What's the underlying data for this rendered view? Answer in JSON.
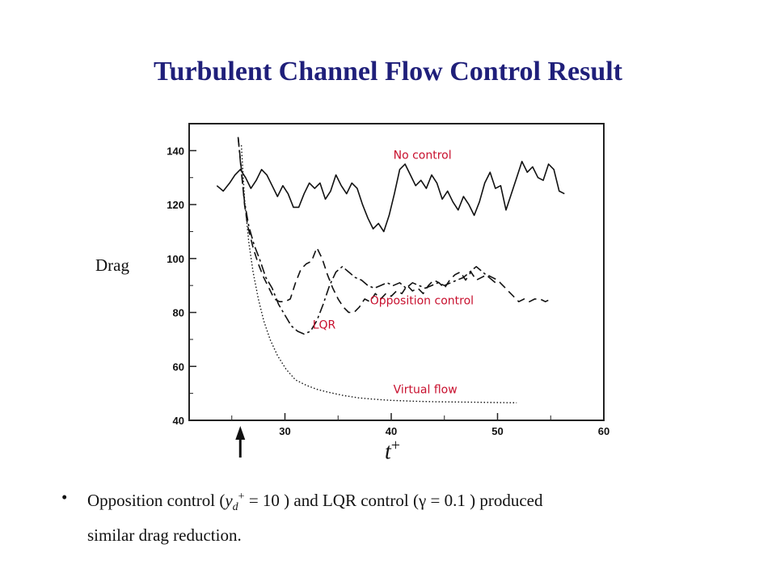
{
  "slide": {
    "title": "Turbulent Channel Flow Control Result",
    "bullet": {
      "symbol": "•",
      "text_before": "Opposition control (",
      "var_y": "y",
      "sub_d": "d",
      "sup_plus": "+",
      "text_mid1": " = 10 ) and LQR control (",
      "gamma": "γ",
      "text_mid2": " = 0.1 ) produced",
      "text_line2": "similar drag reduction."
    }
  },
  "chart_data": {
    "type": "line",
    "ylabel": "Drag",
    "xlabel": "t",
    "xlabel_sup": "+",
    "xlim": [
      20,
      60
    ],
    "ylim": [
      40,
      150
    ],
    "x_ticks": [
      30,
      40,
      50,
      60
    ],
    "y_ticks": [
      40,
      60,
      80,
      100,
      120,
      140
    ],
    "grid": false,
    "control_start_marker_x": 25.8,
    "series": [
      {
        "name": "No control",
        "color": "#c8102e",
        "label_at": [
          40.2,
          137
        ],
        "style": "solid",
        "points": [
          [
            23.6,
            127
          ],
          [
            24.2,
            125
          ],
          [
            24.8,
            128
          ],
          [
            25.3,
            131
          ],
          [
            25.8,
            133
          ],
          [
            26.3,
            130
          ],
          [
            26.8,
            126
          ],
          [
            27.3,
            129
          ],
          [
            27.8,
            133
          ],
          [
            28.3,
            131
          ],
          [
            28.8,
            127
          ],
          [
            29.3,
            123
          ],
          [
            29.8,
            127
          ],
          [
            30.3,
            124
          ],
          [
            30.8,
            119
          ],
          [
            31.3,
            119
          ],
          [
            31.8,
            124
          ],
          [
            32.3,
            128
          ],
          [
            32.8,
            126
          ],
          [
            33.3,
            128
          ],
          [
            33.8,
            122
          ],
          [
            34.3,
            125
          ],
          [
            34.8,
            131
          ],
          [
            35.3,
            127
          ],
          [
            35.8,
            124
          ],
          [
            36.3,
            128
          ],
          [
            36.8,
            126
          ],
          [
            37.3,
            120
          ],
          [
            37.8,
            115
          ],
          [
            38.3,
            111
          ],
          [
            38.8,
            113
          ],
          [
            39.3,
            110
          ],
          [
            39.8,
            116
          ],
          [
            40.3,
            124
          ],
          [
            40.8,
            133
          ],
          [
            41.3,
            135
          ],
          [
            41.8,
            131
          ],
          [
            42.3,
            127
          ],
          [
            42.8,
            129
          ],
          [
            43.3,
            126
          ],
          [
            43.8,
            131
          ],
          [
            44.3,
            128
          ],
          [
            44.8,
            122
          ],
          [
            45.3,
            125
          ],
          [
            45.8,
            121
          ],
          [
            46.3,
            118
          ],
          [
            46.8,
            123
          ],
          [
            47.3,
            120
          ],
          [
            47.8,
            116
          ],
          [
            48.3,
            121
          ],
          [
            48.8,
            128
          ],
          [
            49.3,
            132
          ],
          [
            49.8,
            126
          ],
          [
            50.3,
            127
          ],
          [
            50.8,
            118
          ],
          [
            51.3,
            124
          ],
          [
            51.8,
            130
          ],
          [
            52.3,
            136
          ],
          [
            52.8,
            132
          ],
          [
            53.3,
            134
          ],
          [
            53.8,
            130
          ],
          [
            54.3,
            129
          ],
          [
            54.8,
            135
          ],
          [
            55.3,
            133
          ],
          [
            55.8,
            125
          ],
          [
            56.3,
            124
          ]
        ]
      },
      {
        "name": "Opposition control",
        "color": "#c8102e",
        "label_at": [
          38.0,
          83
        ],
        "style": "dashed",
        "points": [
          [
            25.6,
            145
          ],
          [
            25.9,
            133
          ],
          [
            26.2,
            120
          ],
          [
            26.5,
            112
          ],
          [
            27.0,
            104
          ],
          [
            27.5,
            98
          ],
          [
            28.0,
            93
          ],
          [
            28.5,
            89
          ],
          [
            29.0,
            85
          ],
          [
            29.5,
            84
          ],
          [
            30.0,
            84
          ],
          [
            30.5,
            85
          ],
          [
            31.0,
            91
          ],
          [
            31.5,
            96
          ],
          [
            32.0,
            98
          ],
          [
            32.5,
            99
          ],
          [
            33.0,
            104
          ],
          [
            33.5,
            100
          ],
          [
            34.0,
            94
          ],
          [
            34.5,
            89
          ],
          [
            35.0,
            85
          ],
          [
            35.5,
            82
          ],
          [
            36.0,
            80
          ],
          [
            36.5,
            80
          ],
          [
            37.0,
            82
          ],
          [
            37.5,
            85
          ],
          [
            38.0,
            84
          ],
          [
            38.5,
            87
          ],
          [
            39.0,
            85
          ],
          [
            39.5,
            87
          ],
          [
            40.0,
            86
          ],
          [
            40.5,
            88
          ],
          [
            41.0,
            87
          ],
          [
            41.5,
            90
          ],
          [
            42.0,
            88
          ],
          [
            42.5,
            89
          ],
          [
            43.0,
            87
          ],
          [
            43.5,
            90
          ],
          [
            44.0,
            92
          ],
          [
            44.5,
            91
          ],
          [
            45.0,
            89
          ],
          [
            45.5,
            92
          ],
          [
            46.0,
            94
          ],
          [
            46.5,
            95
          ],
          [
            47.0,
            92
          ],
          [
            47.5,
            95
          ],
          [
            48.0,
            92
          ],
          [
            48.5,
            93
          ],
          [
            49.0,
            94
          ],
          [
            49.5,
            93
          ],
          [
            50.0,
            92
          ],
          [
            50.5,
            90
          ],
          [
            51.0,
            88
          ],
          [
            51.5,
            86
          ],
          [
            52.0,
            84
          ],
          [
            52.5,
            85
          ],
          [
            53.0,
            84
          ],
          [
            53.5,
            85
          ],
          [
            54.0,
            85
          ],
          [
            54.5,
            84
          ],
          [
            55.0,
            85
          ]
        ]
      },
      {
        "name": "LQR",
        "color": "#c8102e",
        "label_at": [
          32.6,
          74
        ],
        "style": "dashdot",
        "points": [
          [
            25.6,
            145
          ],
          [
            25.9,
            132
          ],
          [
            26.2,
            121
          ],
          [
            26.6,
            112
          ],
          [
            27.1,
            105
          ],
          [
            27.6,
            100
          ],
          [
            28.2,
            93
          ],
          [
            28.8,
            89
          ],
          [
            29.4,
            83
          ],
          [
            30.0,
            79
          ],
          [
            30.6,
            75
          ],
          [
            31.2,
            73
          ],
          [
            31.8,
            72
          ],
          [
            32.4,
            73
          ],
          [
            33.0,
            77
          ],
          [
            33.6,
            83
          ],
          [
            34.2,
            90
          ],
          [
            34.8,
            95
          ],
          [
            35.4,
            97
          ],
          [
            36.0,
            95
          ],
          [
            36.6,
            93
          ],
          [
            37.2,
            92
          ],
          [
            37.8,
            90
          ],
          [
            38.4,
            89
          ],
          [
            39.0,
            90
          ],
          [
            39.6,
            91
          ],
          [
            40.2,
            90
          ],
          [
            40.8,
            91
          ],
          [
            41.4,
            89
          ],
          [
            42.0,
            91
          ],
          [
            42.6,
            90
          ],
          [
            43.2,
            89
          ],
          [
            43.8,
            90
          ],
          [
            44.4,
            91
          ],
          [
            45.0,
            90
          ],
          [
            45.6,
            91
          ],
          [
            46.2,
            92
          ],
          [
            46.8,
            93
          ],
          [
            47.4,
            95
          ],
          [
            48.0,
            97
          ],
          [
            48.6,
            95
          ],
          [
            49.2,
            93
          ],
          [
            49.8,
            91
          ]
        ]
      },
      {
        "name": "Virtual flow",
        "color": "#c8102e",
        "label_at": [
          40.2,
          50
        ],
        "style": "dotted",
        "points": [
          [
            25.9,
            142
          ],
          [
            26.2,
            122
          ],
          [
            26.6,
            106
          ],
          [
            27.0,
            95
          ],
          [
            27.5,
            85
          ],
          [
            28.0,
            77
          ],
          [
            28.6,
            70
          ],
          [
            29.3,
            64
          ],
          [
            30.1,
            59
          ],
          [
            31.0,
            55
          ],
          [
            32.0,
            53
          ],
          [
            33.0,
            51.5
          ],
          [
            34.0,
            50.5
          ],
          [
            35.5,
            49.2
          ],
          [
            37.0,
            48.3
          ],
          [
            38.5,
            47.8
          ],
          [
            40.0,
            47.4
          ],
          [
            42.0,
            47.1
          ],
          [
            44.0,
            46.9
          ],
          [
            46.0,
            46.8
          ],
          [
            48.0,
            46.7
          ],
          [
            50.0,
            46.6
          ],
          [
            51.8,
            46.5
          ]
        ]
      }
    ]
  }
}
